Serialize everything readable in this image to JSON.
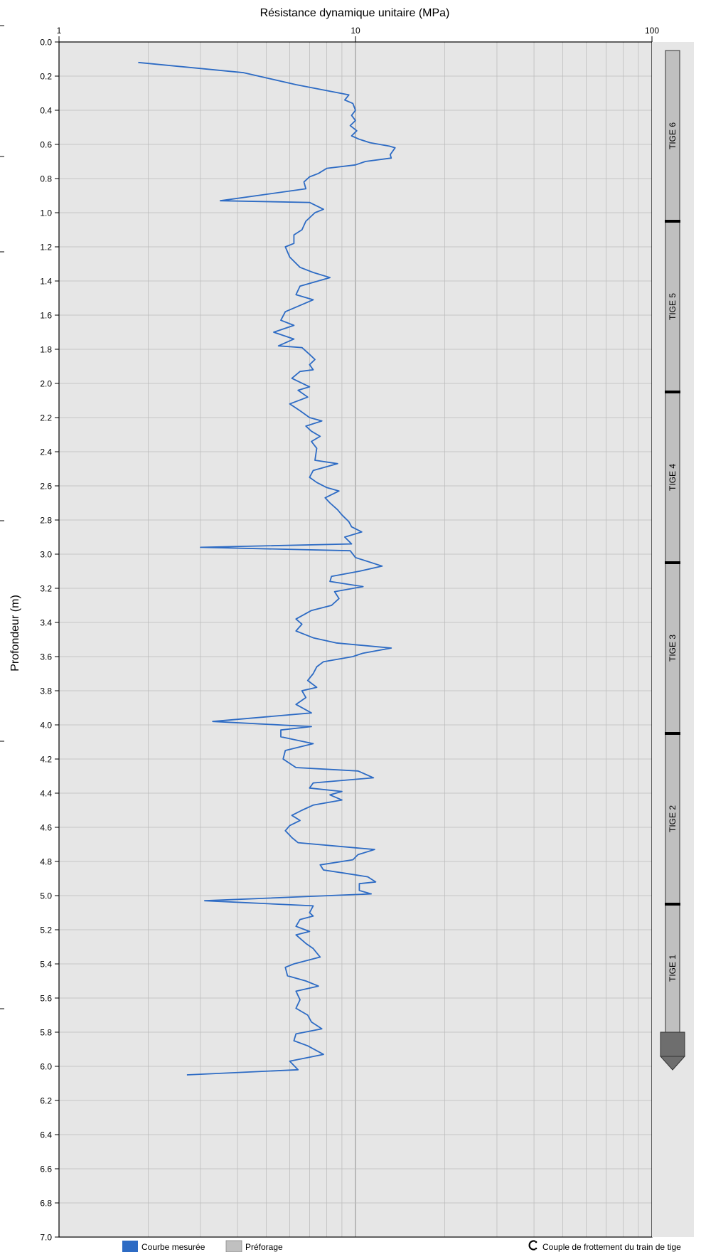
{
  "chart_data": {
    "type": "line",
    "title": "Résistance dynamique unitaire (MPa)",
    "ylabel": "Profondeur (m)",
    "x_scale": "log",
    "xlim": [
      1,
      100
    ],
    "x_ticks": [
      "1",
      "10",
      "100"
    ],
    "ylim": [
      0,
      7
    ],
    "y_ticks": [
      "0.0",
      "0.2",
      "0.4",
      "0.6",
      "0.8",
      "1.0",
      "1.2",
      "1.4",
      "1.6",
      "1.8",
      "2.0",
      "2.2",
      "2.4",
      "2.6",
      "2.8",
      "3.0",
      "3.2",
      "3.4",
      "3.6",
      "3.8",
      "4.0",
      "4.2",
      "4.4",
      "4.6",
      "4.8",
      "5.0",
      "5.2",
      "5.4",
      "5.6",
      "5.8",
      "6.0",
      "6.2",
      "6.4",
      "6.6",
      "6.8",
      "7.0"
    ],
    "grid": true,
    "series": [
      {
        "name": "Courbe mesurée",
        "color": "#2d6bc4",
        "points": [
          [
            1.85,
            0.12
          ],
          [
            4.2,
            0.18
          ],
          [
            6.3,
            0.25
          ],
          [
            9.5,
            0.31
          ],
          [
            9.2,
            0.34
          ],
          [
            9.8,
            0.36
          ],
          [
            10.0,
            0.4
          ],
          [
            9.7,
            0.43
          ],
          [
            10.0,
            0.46
          ],
          [
            9.6,
            0.49
          ],
          [
            10.1,
            0.52
          ],
          [
            9.7,
            0.55
          ],
          [
            10.3,
            0.57
          ],
          [
            11.2,
            0.59
          ],
          [
            13.0,
            0.61
          ],
          [
            13.6,
            0.62
          ],
          [
            13.1,
            0.66
          ],
          [
            13.2,
            0.68
          ],
          [
            10.8,
            0.7
          ],
          [
            10.0,
            0.72
          ],
          [
            8.0,
            0.74
          ],
          [
            7.5,
            0.77
          ],
          [
            7.0,
            0.79
          ],
          [
            6.7,
            0.82
          ],
          [
            6.8,
            0.86
          ],
          [
            3.5,
            0.93
          ],
          [
            7.0,
            0.94
          ],
          [
            7.8,
            0.98
          ],
          [
            7.3,
            1.0
          ],
          [
            6.8,
            1.05
          ],
          [
            6.6,
            1.1
          ],
          [
            6.2,
            1.13
          ],
          [
            6.2,
            1.18
          ],
          [
            5.8,
            1.2
          ],
          [
            6.0,
            1.26
          ],
          [
            6.5,
            1.32
          ],
          [
            7.2,
            1.35
          ],
          [
            8.2,
            1.38
          ],
          [
            6.5,
            1.43
          ],
          [
            6.3,
            1.48
          ],
          [
            7.2,
            1.51
          ],
          [
            5.8,
            1.58
          ],
          [
            5.6,
            1.63
          ],
          [
            6.2,
            1.66
          ],
          [
            5.3,
            1.7
          ],
          [
            6.2,
            1.74
          ],
          [
            5.5,
            1.78
          ],
          [
            6.6,
            1.79
          ],
          [
            7.0,
            1.83
          ],
          [
            7.3,
            1.86
          ],
          [
            7.0,
            1.89
          ],
          [
            7.2,
            1.92
          ],
          [
            6.5,
            1.93
          ],
          [
            6.1,
            1.97
          ],
          [
            7.0,
            2.02
          ],
          [
            6.4,
            2.04
          ],
          [
            6.9,
            2.08
          ],
          [
            6.0,
            2.12
          ],
          [
            6.5,
            2.16
          ],
          [
            7.0,
            2.2
          ],
          [
            7.7,
            2.22
          ],
          [
            6.8,
            2.25
          ],
          [
            7.1,
            2.28
          ],
          [
            7.6,
            2.31
          ],
          [
            7.1,
            2.34
          ],
          [
            7.4,
            2.38
          ],
          [
            7.3,
            2.45
          ],
          [
            8.7,
            2.47
          ],
          [
            7.2,
            2.51
          ],
          [
            7.0,
            2.55
          ],
          [
            7.4,
            2.58
          ],
          [
            8.0,
            2.61
          ],
          [
            8.8,
            2.63
          ],
          [
            7.9,
            2.67
          ],
          [
            8.2,
            2.7
          ],
          [
            8.7,
            2.74
          ],
          [
            9.0,
            2.77
          ],
          [
            9.5,
            2.81
          ],
          [
            9.7,
            2.84
          ],
          [
            10.5,
            2.87
          ],
          [
            9.2,
            2.9
          ],
          [
            9.7,
            2.94
          ],
          [
            3.0,
            2.96
          ],
          [
            9.6,
            2.98
          ],
          [
            10.0,
            3.02
          ],
          [
            12.3,
            3.07
          ],
          [
            10.3,
            3.1
          ],
          [
            8.3,
            3.13
          ],
          [
            8.2,
            3.16
          ],
          [
            10.6,
            3.19
          ],
          [
            8.5,
            3.22
          ],
          [
            8.8,
            3.26
          ],
          [
            8.3,
            3.3
          ],
          [
            7.1,
            3.33
          ],
          [
            6.3,
            3.38
          ],
          [
            6.6,
            3.41
          ],
          [
            6.3,
            3.45
          ],
          [
            7.2,
            3.49
          ],
          [
            8.6,
            3.52
          ],
          [
            13.2,
            3.55
          ],
          [
            10.6,
            3.58
          ],
          [
            9.8,
            3.6
          ],
          [
            7.8,
            3.63
          ],
          [
            7.4,
            3.66
          ],
          [
            7.2,
            3.7
          ],
          [
            6.9,
            3.74
          ],
          [
            7.4,
            3.78
          ],
          [
            6.6,
            3.8
          ],
          [
            6.8,
            3.84
          ],
          [
            6.3,
            3.88
          ],
          [
            7.1,
            3.93
          ],
          [
            3.3,
            3.98
          ],
          [
            7.1,
            4.01
          ],
          [
            5.6,
            4.03
          ],
          [
            5.6,
            4.07
          ],
          [
            7.2,
            4.11
          ],
          [
            5.8,
            4.15
          ],
          [
            5.7,
            4.2
          ],
          [
            6.3,
            4.25
          ],
          [
            10.2,
            4.27
          ],
          [
            11.5,
            4.31
          ],
          [
            7.2,
            4.34
          ],
          [
            7.0,
            4.37
          ],
          [
            9.0,
            4.39
          ],
          [
            8.2,
            4.41
          ],
          [
            9.0,
            4.44
          ],
          [
            7.2,
            4.47
          ],
          [
            6.6,
            4.5
          ],
          [
            6.1,
            4.53
          ],
          [
            6.5,
            4.56
          ],
          [
            6.0,
            4.59
          ],
          [
            5.8,
            4.62
          ],
          [
            6.1,
            4.66
          ],
          [
            6.4,
            4.69
          ],
          [
            10.0,
            4.72
          ],
          [
            11.6,
            4.73
          ],
          [
            10.2,
            4.76
          ],
          [
            9.8,
            4.79
          ],
          [
            7.6,
            4.82
          ],
          [
            7.8,
            4.85
          ],
          [
            9.3,
            4.87
          ],
          [
            11.0,
            4.89
          ],
          [
            11.7,
            4.92
          ],
          [
            10.3,
            4.93
          ],
          [
            10.3,
            4.97
          ],
          [
            11.3,
            4.99
          ],
          [
            3.1,
            5.03
          ],
          [
            7.2,
            5.06
          ],
          [
            7.0,
            5.1
          ],
          [
            7.2,
            5.12
          ],
          [
            6.5,
            5.14
          ],
          [
            6.3,
            5.18
          ],
          [
            7.0,
            5.21
          ],
          [
            6.3,
            5.23
          ],
          [
            6.8,
            5.28
          ],
          [
            7.2,
            5.31
          ],
          [
            7.6,
            5.36
          ],
          [
            6.2,
            5.4
          ],
          [
            5.8,
            5.42
          ],
          [
            5.9,
            5.47
          ],
          [
            6.8,
            5.5
          ],
          [
            7.5,
            5.53
          ],
          [
            6.3,
            5.56
          ],
          [
            6.5,
            5.61
          ],
          [
            6.3,
            5.66
          ],
          [
            6.9,
            5.7
          ],
          [
            7.1,
            5.74
          ],
          [
            7.7,
            5.78
          ],
          [
            6.3,
            5.81
          ],
          [
            6.2,
            5.85
          ],
          [
            6.9,
            5.88
          ],
          [
            7.8,
            5.93
          ],
          [
            6.0,
            5.97
          ],
          [
            6.4,
            6.02
          ],
          [
            2.7,
            6.05
          ]
        ]
      }
    ],
    "rods": {
      "labels": [
        "TIGE 6",
        "TIGE 5",
        "TIGE 4",
        "TIGE 3",
        "TIGE 2",
        "TIGE 1"
      ],
      "joints": [
        0.05,
        1.05,
        2.05,
        3.05,
        4.05,
        5.05
      ],
      "tip": 5.8,
      "color": "#c0c0c0"
    },
    "legend": [
      {
        "label": "Courbe mesurée",
        "color": "#2d6bc4"
      },
      {
        "label": "Préforage",
        "color": "#c0c0c0"
      },
      {
        "label": "Couple de frottement du train de tige",
        "color": "#000000"
      }
    ],
    "plot_background": "#e6e6e6"
  }
}
